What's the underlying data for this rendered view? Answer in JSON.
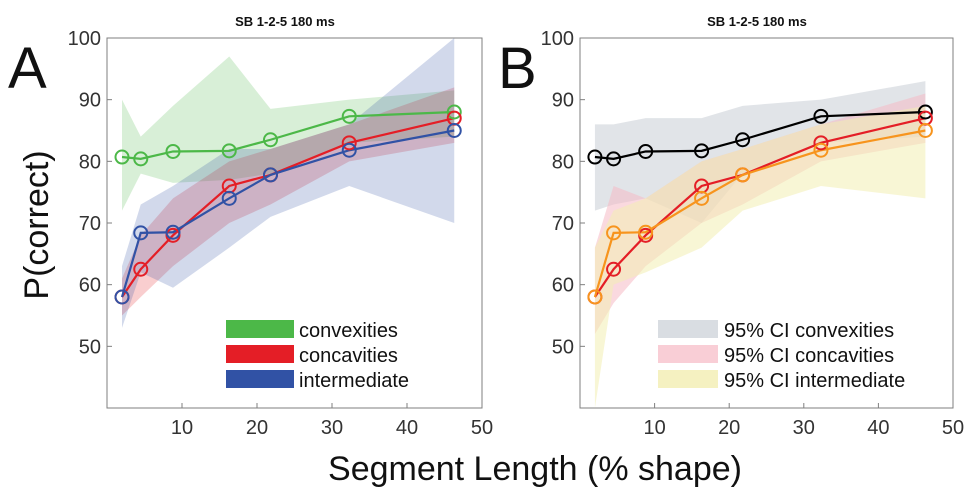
{
  "figure": {
    "ylabel": "P(correct)",
    "xlabel": "Segment Length (% shape)"
  },
  "chart_data": [
    {
      "panel": "A",
      "type": "line",
      "title": "SB  1-2-5  180 ms",
      "xlim": [
        0,
        50
      ],
      "ylim": [
        40,
        100
      ],
      "xticks": [
        10,
        20,
        30,
        40,
        50
      ],
      "yticks": [
        50,
        60,
        70,
        80,
        90,
        100
      ],
      "grid": false,
      "legend_position": "bottom-right",
      "series": [
        {
          "name": "convexities",
          "color": "#4cb848",
          "x": [
            2.0,
            4.5,
            8.8,
            16.3,
            21.8,
            32.3,
            46.3
          ],
          "y": [
            80.7,
            80.4,
            81.6,
            81.7,
            83.5,
            87.3,
            88.0
          ],
          "ci_lower": [
            72.0,
            78.0,
            76.5,
            77.0,
            78.0,
            83.0,
            84.0
          ],
          "ci_upper": [
            90.0,
            84.0,
            89.0,
            97.0,
            88.5,
            90.0,
            91.5
          ]
        },
        {
          "name": "concavities",
          "color": "#e41e26",
          "x": [
            2.0,
            4.5,
            8.8,
            16.3,
            21.8,
            32.3,
            46.3
          ],
          "y": [
            58.0,
            62.5,
            68.0,
            76.0,
            77.8,
            83.0,
            87.0
          ],
          "ci_lower": [
            55.0,
            58.0,
            63.0,
            70.0,
            73.0,
            80.0,
            83.0
          ],
          "ci_upper": [
            61.0,
            68.0,
            74.0,
            80.0,
            82.0,
            86.0,
            92.0
          ]
        },
        {
          "name": "intermediate",
          "color": "#3152a5",
          "x": [
            2.0,
            4.5,
            8.8,
            16.3,
            21.8,
            32.3,
            46.3
          ],
          "y": [
            58.0,
            68.4,
            68.5,
            74.0,
            77.8,
            81.8,
            85.0
          ],
          "ci_lower": [
            53.0,
            62.0,
            59.5,
            66.0,
            71.0,
            76.0,
            70.0
          ],
          "ci_upper": [
            63.0,
            73.0,
            76.0,
            82.0,
            82.0,
            86.0,
            100.0
          ]
        }
      ]
    },
    {
      "panel": "B",
      "type": "line",
      "title": "SB  1-2-5  180 ms",
      "xlim": [
        0,
        50
      ],
      "ylim": [
        40,
        100
      ],
      "xticks": [
        10,
        20,
        30,
        40,
        50
      ],
      "yticks": [
        50,
        60,
        70,
        80,
        90,
        100
      ],
      "grid": false,
      "legend_position": "bottom-right",
      "series": [
        {
          "name": "",
          "line_color": "#000000",
          "x": [
            2.0,
            4.5,
            8.8,
            16.3,
            21.8,
            32.3,
            46.3
          ],
          "y": [
            80.7,
            80.4,
            81.6,
            81.7,
            83.5,
            87.3,
            88.0
          ]
        },
        {
          "name": "",
          "line_color": "#e41e26",
          "x": [
            2.0,
            4.5,
            8.8,
            16.3,
            21.8,
            32.3,
            46.3
          ],
          "y": [
            58.0,
            62.5,
            68.0,
            76.0,
            77.8,
            83.0,
            87.0
          ]
        },
        {
          "name": "",
          "line_color": "#f7941d",
          "x": [
            2.0,
            4.5,
            8.8,
            16.3,
            21.8,
            32.3,
            46.3
          ],
          "y": [
            58.0,
            68.4,
            68.5,
            74.0,
            77.8,
            81.8,
            85.0
          ]
        }
      ],
      "bands": [
        {
          "name": "95% CI convexities",
          "color": "#c9ced6",
          "x": [
            2.0,
            4.5,
            8.8,
            16.3,
            21.8,
            32.3,
            46.3
          ],
          "lower": [
            72.0,
            73.0,
            74.0,
            70.0,
            78.0,
            83.0,
            84.0
          ],
          "upper": [
            86.0,
            86.0,
            87.0,
            87.0,
            89.0,
            90.0,
            93.0
          ]
        },
        {
          "name": "95% CI concavities",
          "color": "#f6b9c4",
          "x": [
            2.0,
            4.5,
            8.8,
            16.3,
            21.8,
            32.3,
            46.3
          ],
          "lower": [
            52.0,
            57.0,
            63.0,
            70.0,
            73.0,
            80.0,
            83.0
          ],
          "upper": [
            66.0,
            76.0,
            74.0,
            80.0,
            82.0,
            86.0,
            91.0
          ]
        },
        {
          "name": "95% CI intermediate",
          "color": "#f2eeb2",
          "x": [
            2.0,
            4.5,
            8.8,
            16.3,
            21.8,
            32.3,
            46.3
          ],
          "lower": [
            40.0,
            60.0,
            62.0,
            66.0,
            72.0,
            76.0,
            74.0
          ],
          "upper": [
            66.0,
            72.0,
            74.0,
            80.0,
            82.0,
            86.0,
            89.0
          ]
        }
      ]
    }
  ]
}
